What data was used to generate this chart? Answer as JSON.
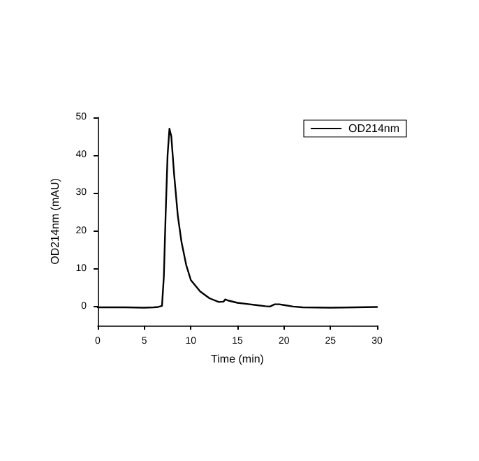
{
  "chart_data": {
    "type": "line",
    "xlabel": "Time (min)",
    "ylabel": "OD214nm (mAU)",
    "x": [
      0,
      3,
      5,
      6,
      6.5,
      6.9,
      7.1,
      7.3,
      7.5,
      7.7,
      7.9,
      8.2,
      8.6,
      9,
      9.5,
      10,
      11,
      12,
      13,
      13.5,
      13.7,
      14,
      15,
      16,
      17,
      18,
      18.5,
      19,
      19.5,
      20,
      21,
      22,
      25,
      30
    ],
    "series": [
      {
        "name": "OD214nm",
        "color": "#000000",
        "values": [
          -0.2,
          -0.2,
          -0.3,
          -0.2,
          -0.1,
          0.2,
          8,
          25,
          40,
          47,
          45,
          35,
          24,
          17,
          11,
          7,
          4,
          2.2,
          1.2,
          1.3,
          1.9,
          1.6,
          1,
          0.7,
          0.4,
          0.1,
          0,
          0.6,
          0.6,
          0.4,
          0,
          -0.2,
          -0.3,
          -0.1
        ]
      }
    ],
    "xlim": [
      0,
      30
    ],
    "xticks": [
      0,
      5,
      10,
      15,
      20,
      25,
      30
    ],
    "ylim": [
      -5,
      50
    ],
    "yticks": [
      0,
      10,
      20,
      30,
      40,
      50
    ],
    "legend": "top right",
    "grid": false,
    "marker": "none",
    "line_style": "solid"
  }
}
